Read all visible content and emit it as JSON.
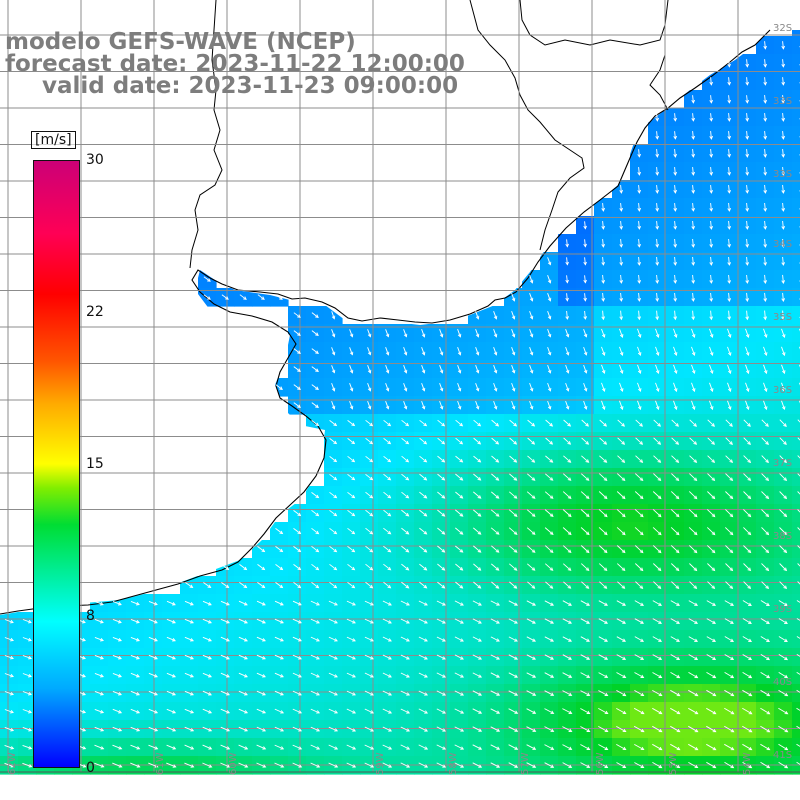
{
  "title": {
    "line1": "modelo GEFS-WAVE (NCEP)",
    "line2": "forecast date: 2023-11-22 12:00:00",
    "line3": "valid date: 2023-11-23 09:00:00"
  },
  "colorbar": {
    "unit": "[m/s]",
    "ticks": [
      {
        "label": "30",
        "value": 30
      },
      {
        "label": "22",
        "value": 22
      },
      {
        "label": "15",
        "value": 15
      },
      {
        "label": "8",
        "value": 8
      },
      {
        "label": "0",
        "value": 0
      }
    ],
    "colors": [
      "#0000ff",
      "#00aaff",
      "#00ffff",
      "#00dd33",
      "#ffff00",
      "#ff0000",
      "#cc0077"
    ]
  },
  "lat_labels": [
    "32S",
    "33S",
    "34S",
    "35S",
    "36S",
    "37S",
    "38S",
    "39S",
    "40S",
    "41S"
  ],
  "lon_labels": [
    "62W",
    "61W",
    "60W",
    "59W",
    "58W",
    "57W",
    "56W",
    "55W",
    "54W"
  ],
  "field": {
    "description_colors": {
      "land": "#ffffff",
      "coast": "#000000",
      "grid": "#8c8c8c",
      "arrow": "#ffffff"
    }
  }
}
